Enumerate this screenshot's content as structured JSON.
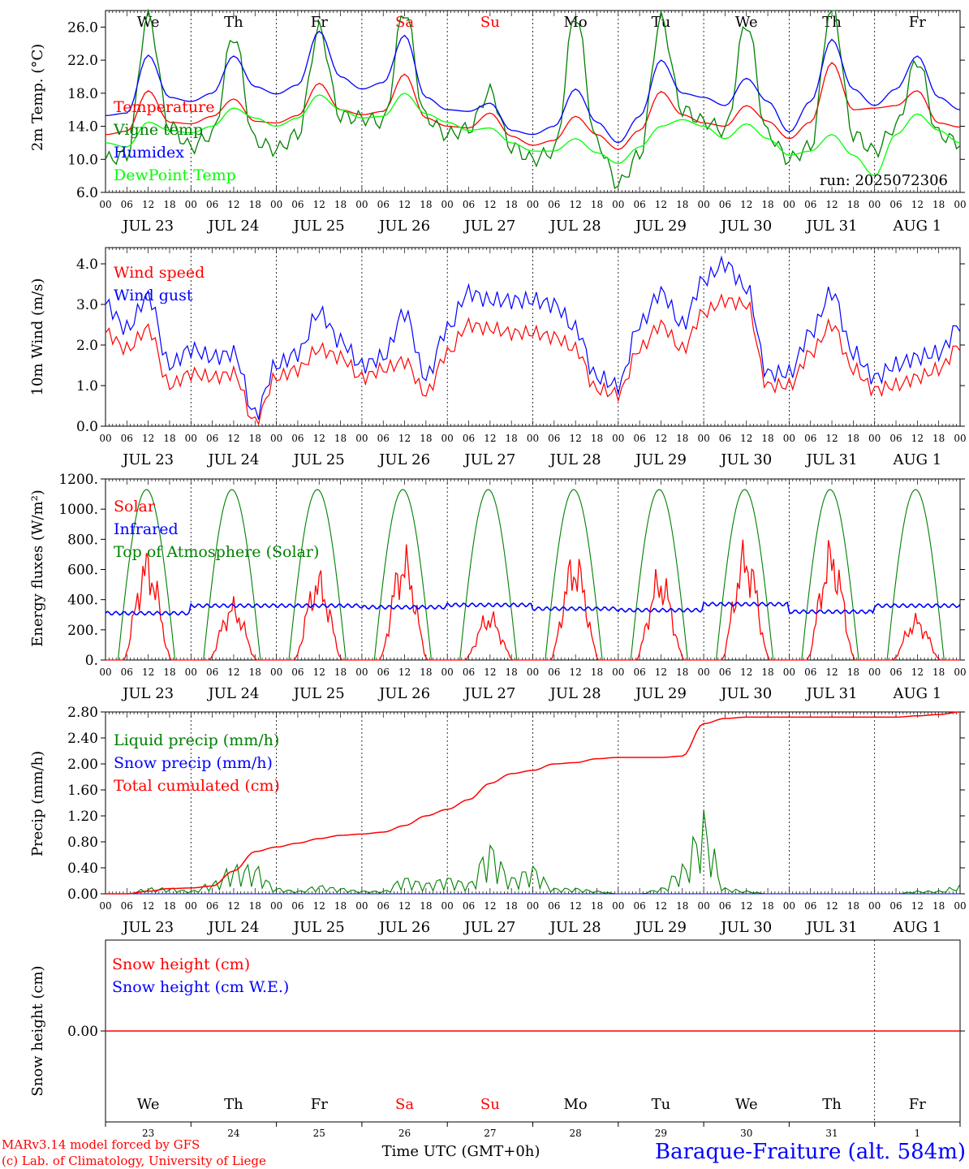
{
  "days": {
    "weekdays": [
      "We",
      "Th",
      "Fr",
      "Sa",
      "Su",
      "Mo",
      "Tu",
      "We",
      "Th",
      "Fr"
    ],
    "weekend_color": "#ff0000",
    "weekend_index": [
      3,
      4
    ],
    "date_labels": [
      "JUL 23",
      "JUL 24",
      "JUL 25",
      "JUL 26",
      "JUL 27",
      "JUL 28",
      "JUL 29",
      "JUL 30",
      "JUL 31",
      "AUG  1"
    ],
    "day_numbers": [
      "23",
      "24",
      "25",
      "26",
      "27",
      "28",
      "29",
      "30",
      "31",
      "1"
    ],
    "hour_ticks": [
      "00",
      "06",
      "12",
      "18"
    ],
    "final_hour": "00"
  },
  "footer": {
    "model_line": "MARv3.14 model forced by GFS",
    "copyright_line": "(c) Lab. of Climatology, University of Liege",
    "xlabel": "Time UTC (GMT+0h)",
    "station": "Baraque-Fraiture (alt. 584m)"
  },
  "colors": {
    "red": "#ff0000",
    "green": "#008000",
    "blue": "#0000ff",
    "lime": "#00ff00",
    "black": "#000000"
  },
  "chart_data": [
    {
      "type": "line",
      "ylabel": "2m Temp. (°C)",
      "ylim": [
        6,
        28
      ],
      "yticks": [
        "6.0",
        "10.0",
        "14.0",
        "18.0",
        "22.0",
        "26.0"
      ],
      "yticks_values": [
        6,
        10,
        14,
        18,
        22,
        26
      ],
      "annotation": "run: 2025072306",
      "x_hours": [
        0,
        6,
        12,
        18,
        24,
        30,
        36,
        42,
        48,
        54,
        60,
        66,
        72,
        78,
        84,
        90,
        96,
        102,
        108,
        114,
        120,
        126,
        132,
        138,
        144,
        150,
        156,
        162,
        168,
        174,
        180,
        186,
        192,
        198,
        204,
        210,
        216,
        222,
        228,
        234,
        240
      ],
      "series": [
        {
          "name": "Temperature",
          "color": "red",
          "values": [
            13.0,
            13.4,
            18.3,
            14.5,
            14.3,
            15.2,
            17.3,
            14.6,
            14.4,
            15.3,
            19.2,
            16.0,
            15.4,
            15.8,
            20.3,
            15.0,
            14.0,
            13.8,
            15.6,
            12.8,
            11.7,
            12.3,
            15.2,
            13.0,
            11.2,
            13.5,
            18.2,
            15.4,
            14.4,
            14.0,
            16.5,
            14.6,
            12.5,
            14.5,
            21.7,
            16.0,
            16.2,
            16.5,
            18.3,
            14.4,
            13.9
          ]
        },
        {
          "name": "Vigne temp",
          "color": "green",
          "values": [
            10.0,
            10.5,
            27.5,
            14.0,
            11.5,
            13.0,
            25.0,
            12.2,
            11.2,
            13.0,
            25.8,
            15.2,
            15.0,
            14.5,
            28.0,
            15.0,
            13.0,
            13.7,
            18.2,
            11.5,
            10.0,
            11.0,
            27.5,
            12.0,
            7.0,
            10.5,
            27.0,
            16.0,
            14.6,
            13.5,
            26.5,
            13.0,
            10.0,
            11.5,
            29.0,
            13.0,
            11.0,
            14.0,
            22.0,
            13.0,
            12.0
          ]
        },
        {
          "name": "Humidex",
          "color": "blue",
          "values": [
            15.3,
            15.6,
            22.6,
            17.5,
            17.0,
            18.0,
            22.5,
            18.8,
            17.9,
            19.0,
            25.5,
            20.0,
            18.5,
            19.3,
            25.0,
            17.5,
            16.0,
            15.8,
            16.8,
            13.5,
            13.0,
            14.0,
            18.5,
            14.5,
            12.0,
            15.2,
            22.0,
            18.0,
            17.5,
            16.5,
            19.8,
            17.0,
            13.3,
            17.0,
            24.5,
            18.5,
            16.5,
            18.5,
            22.5,
            17.5,
            16.0
          ]
        },
        {
          "name": "DewPoint Temp",
          "color": "lime",
          "values": [
            12.0,
            11.5,
            14.5,
            13.5,
            13.2,
            14.0,
            16.2,
            15.0,
            14.0,
            15.0,
            17.8,
            16.0,
            15.0,
            15.2,
            18.0,
            15.5,
            14.5,
            13.5,
            13.8,
            12.0,
            11.0,
            11.0,
            12.5,
            10.8,
            9.5,
            11.5,
            14.0,
            14.8,
            14.0,
            12.5,
            14.3,
            12.5,
            10.5,
            11.0,
            13.0,
            10.5,
            8.0,
            13.0,
            15.5,
            13.5,
            12.0
          ]
        }
      ]
    },
    {
      "type": "line",
      "ylabel": "10m Wind (m/s)",
      "ylim": [
        0,
        4.4
      ],
      "yticks": [
        "0.0",
        "1.0",
        "2.0",
        "3.0",
        "4.0"
      ],
      "yticks_values": [
        0,
        1,
        2,
        3,
        4
      ],
      "x_hours": [
        0,
        6,
        12,
        18,
        24,
        30,
        36,
        42,
        48,
        54,
        60,
        66,
        72,
        78,
        84,
        90,
        96,
        102,
        108,
        114,
        120,
        126,
        132,
        138,
        144,
        150,
        156,
        162,
        168,
        174,
        180,
        186,
        192,
        198,
        204,
        210,
        216,
        222,
        228,
        234,
        240
      ],
      "series": [
        {
          "name": "Wind speed",
          "color": "red",
          "values": [
            2.3,
            1.9,
            2.4,
            1.0,
            1.3,
            1.2,
            1.3,
            0.1,
            1.2,
            1.4,
            1.9,
            1.7,
            1.2,
            1.4,
            1.6,
            0.8,
            1.8,
            2.5,
            2.4,
            2.3,
            2.3,
            2.2,
            1.9,
            0.9,
            0.8,
            1.9,
            2.5,
            1.9,
            2.8,
            3.1,
            3.0,
            1.0,
            1.0,
            1.8,
            2.5,
            1.4,
            0.9,
            1.0,
            1.2,
            1.4,
            2.0
          ]
        },
        {
          "name": "Wind gust",
          "color": "blue",
          "values": [
            3.0,
            2.4,
            3.2,
            1.5,
            1.9,
            1.7,
            1.8,
            0.3,
            1.5,
            1.8,
            2.8,
            2.1,
            1.5,
            1.7,
            2.8,
            1.2,
            2.4,
            3.3,
            3.1,
            3.1,
            3.1,
            3.0,
            2.4,
            1.2,
            1.0,
            2.5,
            3.3,
            2.5,
            3.6,
            4.0,
            3.4,
            1.3,
            1.3,
            2.3,
            3.3,
            1.8,
            1.2,
            1.5,
            1.7,
            1.8,
            2.5
          ]
        }
      ]
    },
    {
      "type": "line",
      "ylabel": "Energy fluxes (W/m²)",
      "ylim": [
        0,
        1200
      ],
      "yticks": [
        "0.",
        "200.",
        "400.",
        "600.",
        "800.",
        "1000.",
        "1200."
      ],
      "yticks_values": [
        0,
        200,
        400,
        600,
        800,
        1000,
        1200
      ],
      "toa_peak": 1130,
      "solar_peaks": [
        780,
        430,
        640,
        800,
        350,
        780,
        650,
        840,
        850,
        320
      ],
      "infrared_daily": [
        310,
        360,
        360,
        350,
        365,
        340,
        330,
        370,
        320,
        360
      ],
      "series": [
        {
          "name": "Solar",
          "color": "red"
        },
        {
          "name": "Infrared",
          "color": "blue"
        },
        {
          "name": "Top of Atmosphere (Solar)",
          "color": "green"
        }
      ]
    },
    {
      "type": "line",
      "ylabel": "Precip (mm/h)",
      "ylim": [
        0,
        2.8
      ],
      "yticks": [
        "0.00",
        "0.40",
        "0.80",
        "1.20",
        "1.60",
        "2.00",
        "2.40",
        "2.80"
      ],
      "yticks_values": [
        0,
        0.4,
        0.8,
        1.2,
        1.6,
        2.0,
        2.4,
        2.8
      ],
      "x_hours": [
        0,
        6,
        12,
        18,
        24,
        30,
        36,
        42,
        48,
        54,
        60,
        66,
        72,
        78,
        84,
        90,
        96,
        102,
        108,
        114,
        120,
        126,
        132,
        138,
        144,
        150,
        156,
        162,
        168,
        174,
        180,
        186,
        192,
        198,
        204,
        210,
        216,
        222,
        228,
        234,
        240
      ],
      "series": [
        {
          "name": "Liquid precip (mm/h)",
          "color": "green",
          "values": [
            0,
            0,
            0.1,
            0.1,
            0.05,
            0.2,
            0.5,
            0.5,
            0.1,
            0.05,
            0.15,
            0.1,
            0.05,
            0.05,
            0.3,
            0.2,
            0.3,
            0.2,
            0.9,
            0.3,
            0.5,
            0.1,
            0.1,
            0.05,
            0,
            0,
            0.1,
            0.5,
            1.4,
            0.1,
            0.05,
            0,
            0,
            0,
            0,
            0,
            0,
            0,
            0.05,
            0.05,
            0.15
          ]
        },
        {
          "name": "Snow precip (mm/h)",
          "color": "blue",
          "values": [
            0,
            0,
            0,
            0,
            0,
            0,
            0,
            0,
            0,
            0,
            0,
            0,
            0,
            0,
            0,
            0,
            0,
            0,
            0,
            0,
            0,
            0,
            0,
            0,
            0,
            0,
            0,
            0,
            0,
            0,
            0,
            0,
            0,
            0,
            0,
            0,
            0,
            0,
            0,
            0,
            0
          ]
        },
        {
          "name": "Total cumulated (cm)",
          "color": "red",
          "values": [
            0,
            0,
            0.04,
            0.08,
            0.09,
            0.12,
            0.35,
            0.65,
            0.72,
            0.78,
            0.85,
            0.9,
            0.92,
            0.95,
            1.05,
            1.2,
            1.3,
            1.45,
            1.7,
            1.85,
            1.9,
            2.0,
            2.02,
            2.08,
            2.1,
            2.1,
            2.1,
            2.12,
            2.62,
            2.7,
            2.72,
            2.72,
            2.72,
            2.72,
            2.72,
            2.72,
            2.72,
            2.72,
            2.74,
            2.76,
            2.8
          ]
        }
      ]
    },
    {
      "type": "line",
      "ylabel": "Snow height (cm)",
      "yticks": [
        "0.00"
      ],
      "series": [
        {
          "name": "Snow height (cm)",
          "color": "red",
          "values": [
            0
          ]
        },
        {
          "name": "Snow height (cm W.E.)",
          "color": "blue",
          "values": [
            0
          ]
        }
      ]
    }
  ]
}
